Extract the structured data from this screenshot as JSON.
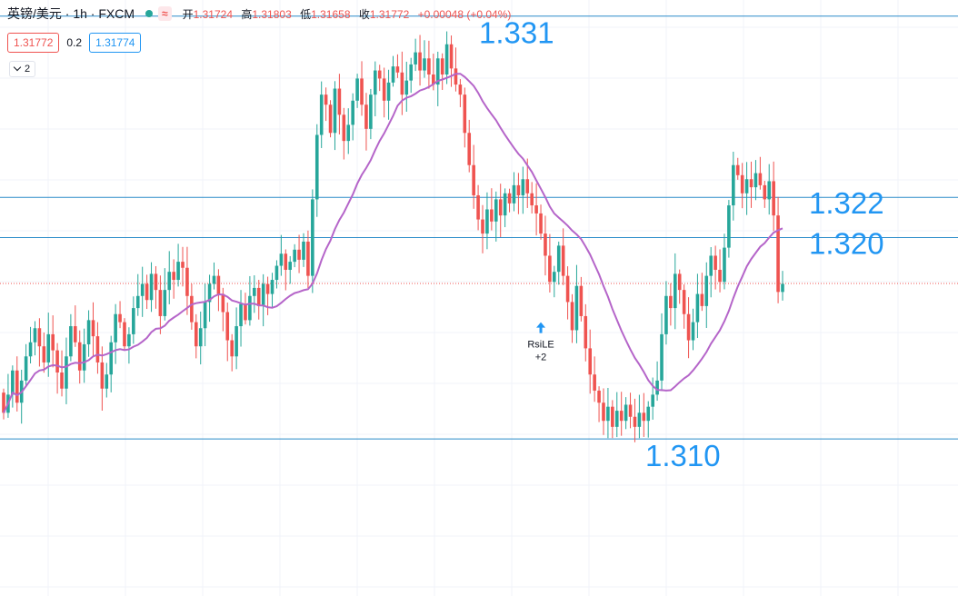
{
  "header": {
    "symbol": "英镑/美元 · 1h · FXCM",
    "badge": "≈",
    "open_label": "开",
    "open": "1.31724",
    "high_label": "高",
    "high": "1.31803",
    "low_label": "低",
    "low": "1.31658",
    "close_label": "收",
    "close": "1.31772",
    "change": "+0.00048 (+0.04%)"
  },
  "quote": {
    "sell": "1.31772",
    "spread": "0.2",
    "buy": "1.31774"
  },
  "indicator_toggle": "2",
  "colors": {
    "up": "#26a69a",
    "down": "#ef5350",
    "ma": "#b565c9",
    "level": "#2a8bc9",
    "level_text": "#2196f3"
  },
  "chart_data": {
    "type": "candlestick",
    "y_axis_range": [
      1.3022,
      1.3318
    ],
    "level_lines": [
      {
        "value": 1.331,
        "label": "1.331"
      },
      {
        "value": 1.322,
        "label": "1.322"
      },
      {
        "value": 1.32,
        "label": "1.320"
      },
      {
        "value": 1.31,
        "label": "1.310"
      }
    ],
    "current_price": 1.31772,
    "signal": {
      "label": "RsiLE",
      "count": "+2"
    },
    "closes": [
      1.3113,
      1.3122,
      1.3134,
      1.3118,
      1.3129,
      1.3141,
      1.3148,
      1.3155,
      1.3146,
      1.3138,
      1.3152,
      1.3144,
      1.3133,
      1.3125,
      1.3141,
      1.3156,
      1.3148,
      1.3134,
      1.3147,
      1.3159,
      1.3151,
      1.3138,
      1.3125,
      1.3132,
      1.3148,
      1.3162,
      1.3158,
      1.3146,
      1.3152,
      1.3165,
      1.3171,
      1.3177,
      1.3169,
      1.3182,
      1.3174,
      1.3161,
      1.3174,
      1.3183,
      1.3179,
      1.3188,
      1.3185,
      1.3171,
      1.3158,
      1.3146,
      1.3155,
      1.3168,
      1.3177,
      1.3181,
      1.3172,
      1.3163,
      1.3149,
      1.3141,
      1.3156,
      1.3167,
      1.3159,
      1.3171,
      1.3175,
      1.3166,
      1.3177,
      1.3172,
      1.3179,
      1.3186,
      1.3192,
      1.3184,
      1.3188,
      1.3194,
      1.3189,
      1.3198,
      1.3181,
      1.3219,
      1.3251,
      1.3271,
      1.3266,
      1.3252,
      1.3274,
      1.3261,
      1.3248,
      1.3256,
      1.3268,
      1.3279,
      1.3266,
      1.3254,
      1.3271,
      1.3283,
      1.3279,
      1.3268,
      1.3277,
      1.3285,
      1.3282,
      1.3271,
      1.3278,
      1.3286,
      1.3292,
      1.3283,
      1.3289,
      1.3281,
      1.3276,
      1.3289,
      1.3281,
      1.3296,
      1.3284,
      1.3276,
      1.3271,
      1.3252,
      1.3236,
      1.3221,
      1.3209,
      1.3202,
      1.3214,
      1.3208,
      1.3219,
      1.3211,
      1.3222,
      1.3217,
      1.3226,
      1.3221,
      1.3229,
      1.3222,
      1.3216,
      1.3212,
      1.3202,
      1.3191,
      1.3178,
      1.3183,
      1.3196,
      1.3181,
      1.3168,
      1.3154,
      1.3176,
      1.3161,
      1.3145,
      1.3132,
      1.3124,
      1.3118,
      1.3109,
      1.3116,
      1.3106,
      1.3114,
      1.3109,
      1.3117,
      1.3111,
      1.3106,
      1.3113,
      1.3109,
      1.3116,
      1.3122,
      1.3129,
      1.3152,
      1.3171,
      1.3165,
      1.3182,
      1.3174,
      1.3162,
      1.3149,
      1.3158,
      1.3172,
      1.3166,
      1.3181,
      1.3191,
      1.3184,
      1.3178,
      1.3195,
      1.3216,
      1.3236,
      1.3231,
      1.3222,
      1.3229,
      1.3225,
      1.3232,
      1.3226,
      1.3219,
      1.3228,
      1.3211,
      1.3173,
      1.3177
    ],
    "ma_period": 20
  }
}
